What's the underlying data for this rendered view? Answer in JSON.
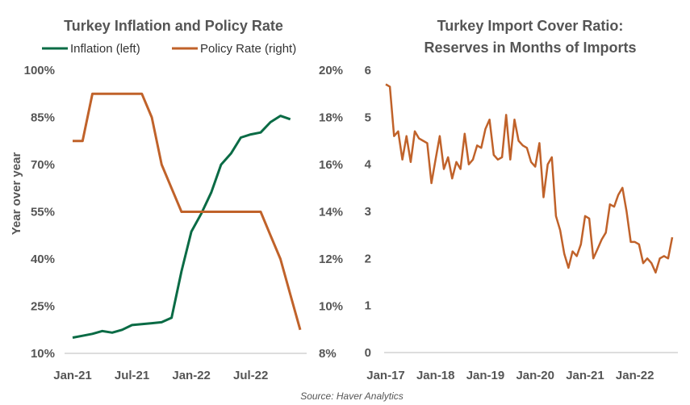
{
  "chart_data": [
    {
      "type": "line",
      "title": "Turkey Inflation and Policy Rate",
      "ylabel": "Year over year",
      "x_tick_labels": [
        "Jan-21",
        "Jul-21",
        "Jan-22",
        "Jul-22"
      ],
      "x": [
        "2021-01",
        "2021-02",
        "2021-03",
        "2021-04",
        "2021-05",
        "2021-06",
        "2021-07",
        "2021-08",
        "2021-09",
        "2021-10",
        "2021-11",
        "2021-12",
        "2022-01",
        "2022-02",
        "2022-03",
        "2022-04",
        "2022-05",
        "2022-06",
        "2022-07",
        "2022-08",
        "2022-09",
        "2022-10",
        "2022-11",
        "2022-12"
      ],
      "y_left": {
        "min": 10,
        "max": 100,
        "ticks": [
          100,
          85,
          70,
          55,
          40,
          25,
          10
        ],
        "tick_labels": [
          "100%",
          "85%",
          "70%",
          "55%",
          "40%",
          "25%",
          "10%"
        ]
      },
      "y_right": {
        "min": 8,
        "max": 20,
        "ticks": [
          20,
          18,
          16,
          14,
          12,
          10,
          8
        ],
        "tick_labels": [
          "20%",
          "18%",
          "16%",
          "14%",
          "12%",
          "10%",
          "8%"
        ]
      },
      "legend_position": "top",
      "series": [
        {
          "name": "Inflation (left)",
          "axis": "left",
          "color": "#0a6b45",
          "values": [
            15.0,
            15.6,
            16.2,
            17.1,
            16.6,
            17.5,
            19.0,
            19.3,
            19.6,
            19.9,
            21.3,
            36.1,
            48.7,
            54.4,
            61.1,
            69.97,
            73.5,
            78.6,
            79.6,
            80.2,
            83.5,
            85.5,
            84.4,
            null
          ]
        },
        {
          "name": "Policy Rate (right)",
          "axis": "right",
          "color": "#c0622a",
          "values": [
            17.0,
            17.0,
            19.0,
            19.0,
            19.0,
            19.0,
            19.0,
            19.0,
            18.0,
            16.0,
            15.0,
            14.0,
            14.0,
            14.0,
            14.0,
            14.0,
            14.0,
            14.0,
            14.0,
            14.0,
            13.0,
            12.0,
            10.5,
            9.0
          ]
        }
      ]
    },
    {
      "type": "line",
      "title": "Turkey Import Cover Ratio:",
      "subtitle": "Reserves in Months of Imports",
      "x_tick_labels": [
        "Jan-17",
        "Jan-18",
        "Jan-19",
        "Jan-20",
        "Jan-21",
        "Jan-22"
      ],
      "ylim": [
        0,
        6
      ],
      "y_ticks": [
        0,
        1,
        2,
        3,
        4,
        5,
        6
      ],
      "series": [
        {
          "name": "",
          "color": "#c0622a",
          "x_start": "2017-01",
          "values": [
            5.7,
            5.65,
            4.6,
            4.7,
            4.1,
            4.6,
            4.05,
            4.7,
            4.55,
            4.5,
            4.45,
            3.6,
            4.1,
            4.6,
            3.9,
            4.15,
            3.7,
            4.05,
            3.9,
            4.65,
            4.0,
            4.1,
            4.4,
            4.35,
            4.75,
            4.95,
            4.2,
            4.1,
            4.15,
            5.05,
            4.1,
            4.95,
            4.5,
            4.4,
            4.35,
            4.05,
            3.95,
            4.45,
            3.3,
            4.0,
            4.15,
            2.9,
            2.6,
            2.1,
            1.8,
            2.15,
            2.05,
            2.3,
            2.9,
            2.85,
            2.0,
            2.2,
            2.4,
            2.55,
            3.15,
            3.1,
            3.35,
            3.5,
            3.0,
            2.35,
            2.35,
            2.3,
            1.9,
            2.0,
            1.9,
            1.7,
            2.0,
            2.05,
            2.0,
            2.45
          ]
        }
      ]
    }
  ],
  "source": "Source: Haver Analytics"
}
